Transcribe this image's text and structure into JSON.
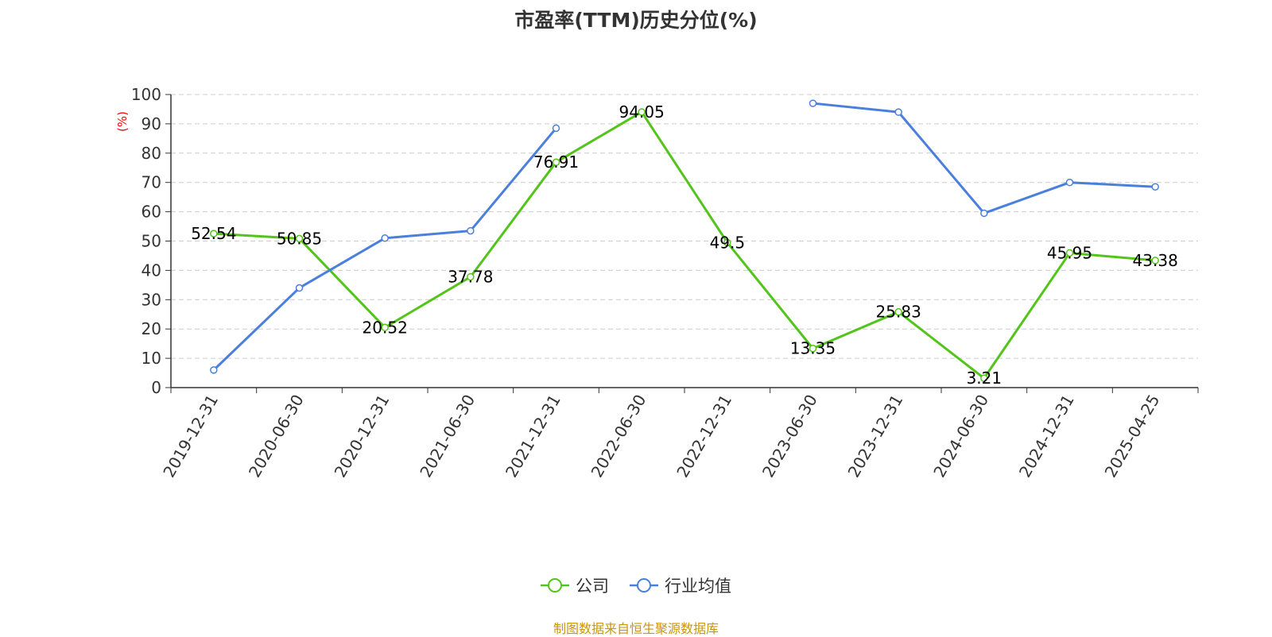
{
  "chart_data": {
    "type": "line",
    "title": "市盈率(TTM)历史分位(%)",
    "ylabel": "(%)",
    "ylim": [
      0,
      100
    ],
    "yticks": [
      0,
      10,
      20,
      30,
      40,
      50,
      60,
      70,
      80,
      90,
      100
    ],
    "categories": [
      "2019-12-31",
      "2020-06-30",
      "2020-12-31",
      "2021-06-30",
      "2021-12-31",
      "2022-06-30",
      "2022-12-31",
      "2023-06-30",
      "2023-12-31",
      "2024-06-30",
      "2024-12-31",
      "2025-04-25"
    ],
    "grid": true,
    "legend_position": "bottom",
    "series": [
      {
        "name": "公司",
        "color": "#52c41a",
        "show_labels": true,
        "values": [
          52.54,
          50.85,
          20.52,
          37.78,
          76.91,
          94.05,
          49.5,
          13.35,
          25.83,
          3.21,
          45.95,
          43.38
        ]
      },
      {
        "name": "行业均值",
        "color": "#4a7fdc",
        "show_labels": false,
        "values": [
          6,
          34,
          51,
          53.5,
          88.5,
          null,
          null,
          97,
          94,
          59.5,
          70,
          68.5
        ]
      }
    ]
  },
  "footer": {
    "source": "制图数据来自恒生聚源数据库"
  },
  "colors": {
    "axis": "#333333",
    "grid": "#cccccc",
    "ylabel": "#ff0000",
    "footer": "#c8960c"
  }
}
